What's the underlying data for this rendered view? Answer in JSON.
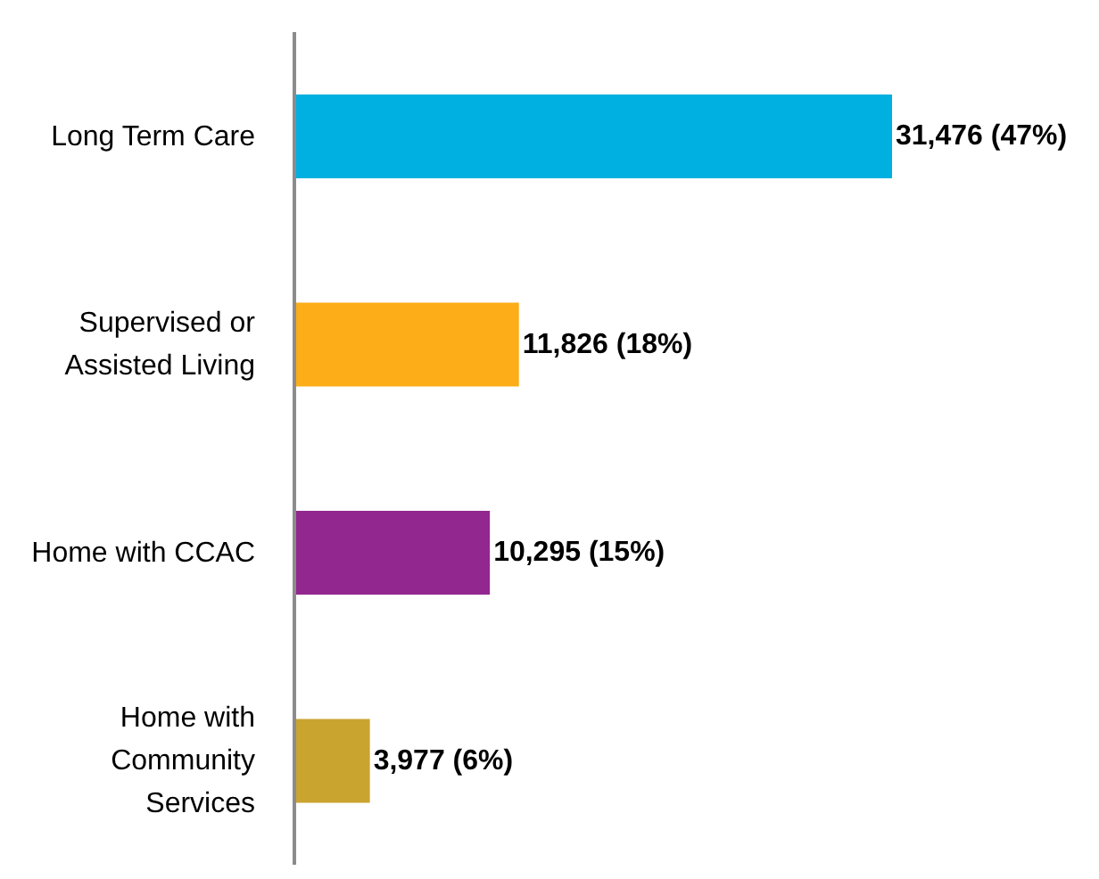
{
  "chart_data": {
    "type": "bar",
    "orientation": "horizontal",
    "categories": [
      "Long Term Care",
      "Supervised or Assisted Living",
      "Home with CCAC",
      "Home with Community Services"
    ],
    "values": [
      31476,
      11826,
      10295,
      3977
    ],
    "colors": [
      "#00b0e0",
      "#fcad17",
      "#92278f",
      "#c9a42f"
    ],
    "value_labels": [
      "31,476 (47%)",
      "11,826 (18%)",
      "10,295 (15%)",
      "3,977 (6%)"
    ]
  }
}
